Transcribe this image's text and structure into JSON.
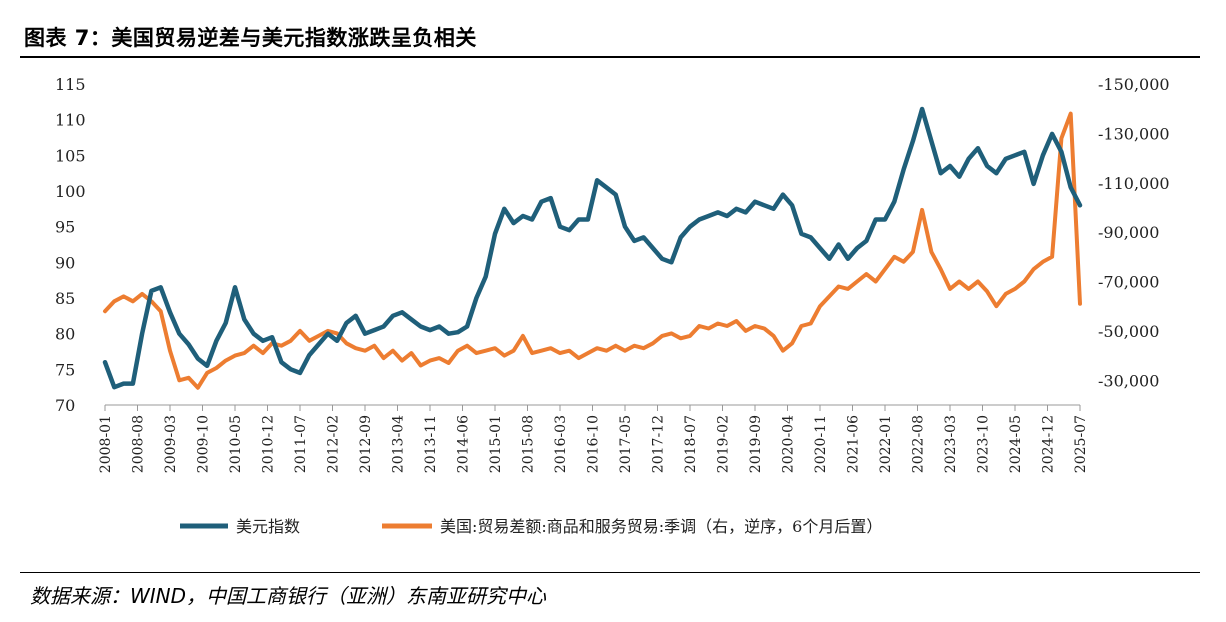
{
  "title": "图表 7：美国贸易逆差与美元指数涨跌呈负相关",
  "source": "数据来源：WIND，中国工商银行（亚洲）东南亚研究中心",
  "colors": {
    "dxy": "#1f5f7a",
    "trade": "#ed7d31"
  },
  "chart_data": {
    "type": "line",
    "x_ticks": [
      "2008-01",
      "2008-08",
      "2009-03",
      "2009-10",
      "2010-05",
      "2010-12",
      "2011-07",
      "2012-02",
      "2012-09",
      "2013-04",
      "2013-11",
      "2014-06",
      "2015-01",
      "2015-08",
      "2016-03",
      "2016-10",
      "2017-05",
      "2017-12",
      "2018-07",
      "2019-02",
      "2019-09",
      "2020-04",
      "2020-11",
      "2021-06",
      "2022-01",
      "2022-08",
      "2023-03",
      "2023-10",
      "2024-05",
      "2024-12",
      "2025-07"
    ],
    "y_left": {
      "ticks": [
        "70",
        "75",
        "80",
        "85",
        "90",
        "95",
        "100",
        "105",
        "110",
        "115"
      ],
      "range": [
        70,
        115
      ]
    },
    "y_right": {
      "ticks": [
        "-30,000",
        "-50,000",
        "-70,000",
        "-90,000",
        "-110,000",
        "-130,000",
        "-150,000"
      ],
      "range": [
        -20000,
        -150000
      ],
      "inverted": true
    },
    "series": [
      {
        "name": "美元指数",
        "axis": "left",
        "x": [
          "2008-01",
          "2008-03",
          "2008-05",
          "2008-07",
          "2008-09",
          "2008-11",
          "2009-01",
          "2009-03",
          "2009-05",
          "2009-07",
          "2009-09",
          "2009-11",
          "2010-01",
          "2010-03",
          "2010-05",
          "2010-07",
          "2010-09",
          "2010-11",
          "2011-01",
          "2011-03",
          "2011-05",
          "2011-07",
          "2011-09",
          "2011-11",
          "2012-01",
          "2012-03",
          "2012-05",
          "2012-07",
          "2012-09",
          "2012-11",
          "2013-01",
          "2013-03",
          "2013-05",
          "2013-07",
          "2013-09",
          "2013-11",
          "2014-01",
          "2014-03",
          "2014-05",
          "2014-07",
          "2014-09",
          "2014-11",
          "2015-01",
          "2015-03",
          "2015-05",
          "2015-07",
          "2015-09",
          "2015-11",
          "2016-01",
          "2016-03",
          "2016-05",
          "2016-07",
          "2016-09",
          "2016-11",
          "2017-01",
          "2017-03",
          "2017-05",
          "2017-07",
          "2017-09",
          "2017-11",
          "2018-01",
          "2018-03",
          "2018-05",
          "2018-07",
          "2018-09",
          "2018-11",
          "2019-01",
          "2019-03",
          "2019-05",
          "2019-07",
          "2019-09",
          "2019-11",
          "2020-01",
          "2020-03",
          "2020-05",
          "2020-07",
          "2020-09",
          "2020-11",
          "2021-01",
          "2021-03",
          "2021-05",
          "2021-07",
          "2021-09",
          "2021-11",
          "2022-01",
          "2022-03",
          "2022-05",
          "2022-07",
          "2022-09",
          "2022-11",
          "2023-01",
          "2023-03",
          "2023-05",
          "2023-07",
          "2023-09",
          "2023-11",
          "2024-01",
          "2024-03",
          "2024-05",
          "2024-07",
          "2024-09",
          "2024-11",
          "2025-01",
          "2025-03",
          "2025-05",
          "2025-07"
        ],
        "values": [
          76,
          72.5,
          73,
          73,
          80,
          86,
          86.5,
          83,
          80,
          78.5,
          76.5,
          75.5,
          79,
          81.5,
          86.5,
          82,
          80,
          79,
          79.5,
          76,
          75,
          74.5,
          77,
          78.5,
          80,
          79,
          81.5,
          82.5,
          80,
          80.5,
          81,
          82.5,
          83,
          82,
          81,
          80.5,
          81,
          80,
          80.2,
          81,
          85,
          88,
          94,
          97.5,
          95.5,
          96.5,
          96,
          98.5,
          99,
          95,
          94.5,
          96,
          96,
          101.5,
          100.5,
          99.5,
          95,
          93,
          93.5,
          92,
          90.5,
          90,
          93.5,
          95,
          96,
          96.5,
          97,
          96.5,
          97.5,
          97,
          98.5,
          98,
          97.5,
          99.5,
          98,
          94,
          93.5,
          92,
          90.5,
          92.5,
          90.5,
          92,
          93,
          96,
          96,
          98.5,
          103,
          107,
          111.5,
          107,
          102.5,
          103.5,
          102,
          104.5,
          106,
          103.5,
          102.5,
          104.5,
          105,
          105.5,
          101,
          105,
          108,
          105.5,
          100.5,
          98
        ]
      },
      {
        "name": "美国:贸易差额:商品和服务贸易:季调（右，逆序，6个月后置）",
        "axis": "right",
        "x": [
          "2008-01",
          "2008-03",
          "2008-05",
          "2008-07",
          "2008-09",
          "2008-11",
          "2009-01",
          "2009-03",
          "2009-05",
          "2009-07",
          "2009-09",
          "2009-11",
          "2010-01",
          "2010-03",
          "2010-05",
          "2010-07",
          "2010-09",
          "2010-11",
          "2011-01",
          "2011-03",
          "2011-05",
          "2011-07",
          "2011-09",
          "2011-11",
          "2012-01",
          "2012-03",
          "2012-05",
          "2012-07",
          "2012-09",
          "2012-11",
          "2013-01",
          "2013-03",
          "2013-05",
          "2013-07",
          "2013-09",
          "2013-11",
          "2014-01",
          "2014-03",
          "2014-05",
          "2014-07",
          "2014-09",
          "2014-11",
          "2015-01",
          "2015-03",
          "2015-05",
          "2015-07",
          "2015-09",
          "2015-11",
          "2016-01",
          "2016-03",
          "2016-05",
          "2016-07",
          "2016-09",
          "2016-11",
          "2017-01",
          "2017-03",
          "2017-05",
          "2017-07",
          "2017-09",
          "2017-11",
          "2018-01",
          "2018-03",
          "2018-05",
          "2018-07",
          "2018-09",
          "2018-11",
          "2019-01",
          "2019-03",
          "2019-05",
          "2019-07",
          "2019-09",
          "2019-11",
          "2020-01",
          "2020-03",
          "2020-05",
          "2020-07",
          "2020-09",
          "2020-11",
          "2021-01",
          "2021-03",
          "2021-05",
          "2021-07",
          "2021-09",
          "2021-11",
          "2022-01",
          "2022-03",
          "2022-05",
          "2022-07",
          "2022-09",
          "2022-11",
          "2023-01",
          "2023-03",
          "2023-05",
          "2023-07",
          "2023-09",
          "2023-11",
          "2024-01",
          "2024-03",
          "2024-05",
          "2024-07",
          "2024-09",
          "2024-11",
          "2025-01",
          "2025-03",
          "2025-05",
          "2025-07"
        ],
        "values": [
          -58000,
          -62000,
          -64000,
          -62000,
          -65000,
          -62000,
          -58000,
          -42000,
          -30000,
          -31000,
          -27000,
          -33000,
          -35000,
          -38000,
          -40000,
          -41000,
          -44000,
          -41000,
          -45000,
          -44000,
          -46000,
          -50000,
          -46000,
          -48000,
          -50000,
          -49000,
          -45000,
          -43000,
          -42000,
          -44000,
          -39000,
          -42000,
          -38000,
          -41000,
          -36000,
          -38000,
          -39000,
          -37000,
          -42000,
          -44000,
          -41000,
          -42000,
          -43000,
          -40000,
          -42000,
          -48000,
          -41000,
          -42000,
          -43000,
          -41000,
          -42000,
          -39000,
          -41000,
          -43000,
          -42000,
          -44000,
          -42000,
          -44000,
          -43000,
          -45000,
          -48000,
          -49000,
          -47000,
          -48000,
          -52000,
          -51000,
          -53000,
          -52000,
          -54000,
          -50000,
          -52000,
          -51000,
          -48000,
          -42000,
          -45000,
          -52000,
          -53000,
          -60000,
          -64000,
          -68000,
          -67000,
          -70000,
          -73000,
          -70000,
          -75000,
          -80000,
          -78000,
          -82000,
          -99000,
          -82000,
          -75000,
          -67000,
          -70000,
          -67000,
          -70000,
          -66000,
          -60000,
          -65000,
          -67000,
          -70000,
          -75000,
          -78000,
          -80000,
          -128000,
          -138000,
          -61000
        ]
      }
    ],
    "legend_position": "bottom"
  }
}
